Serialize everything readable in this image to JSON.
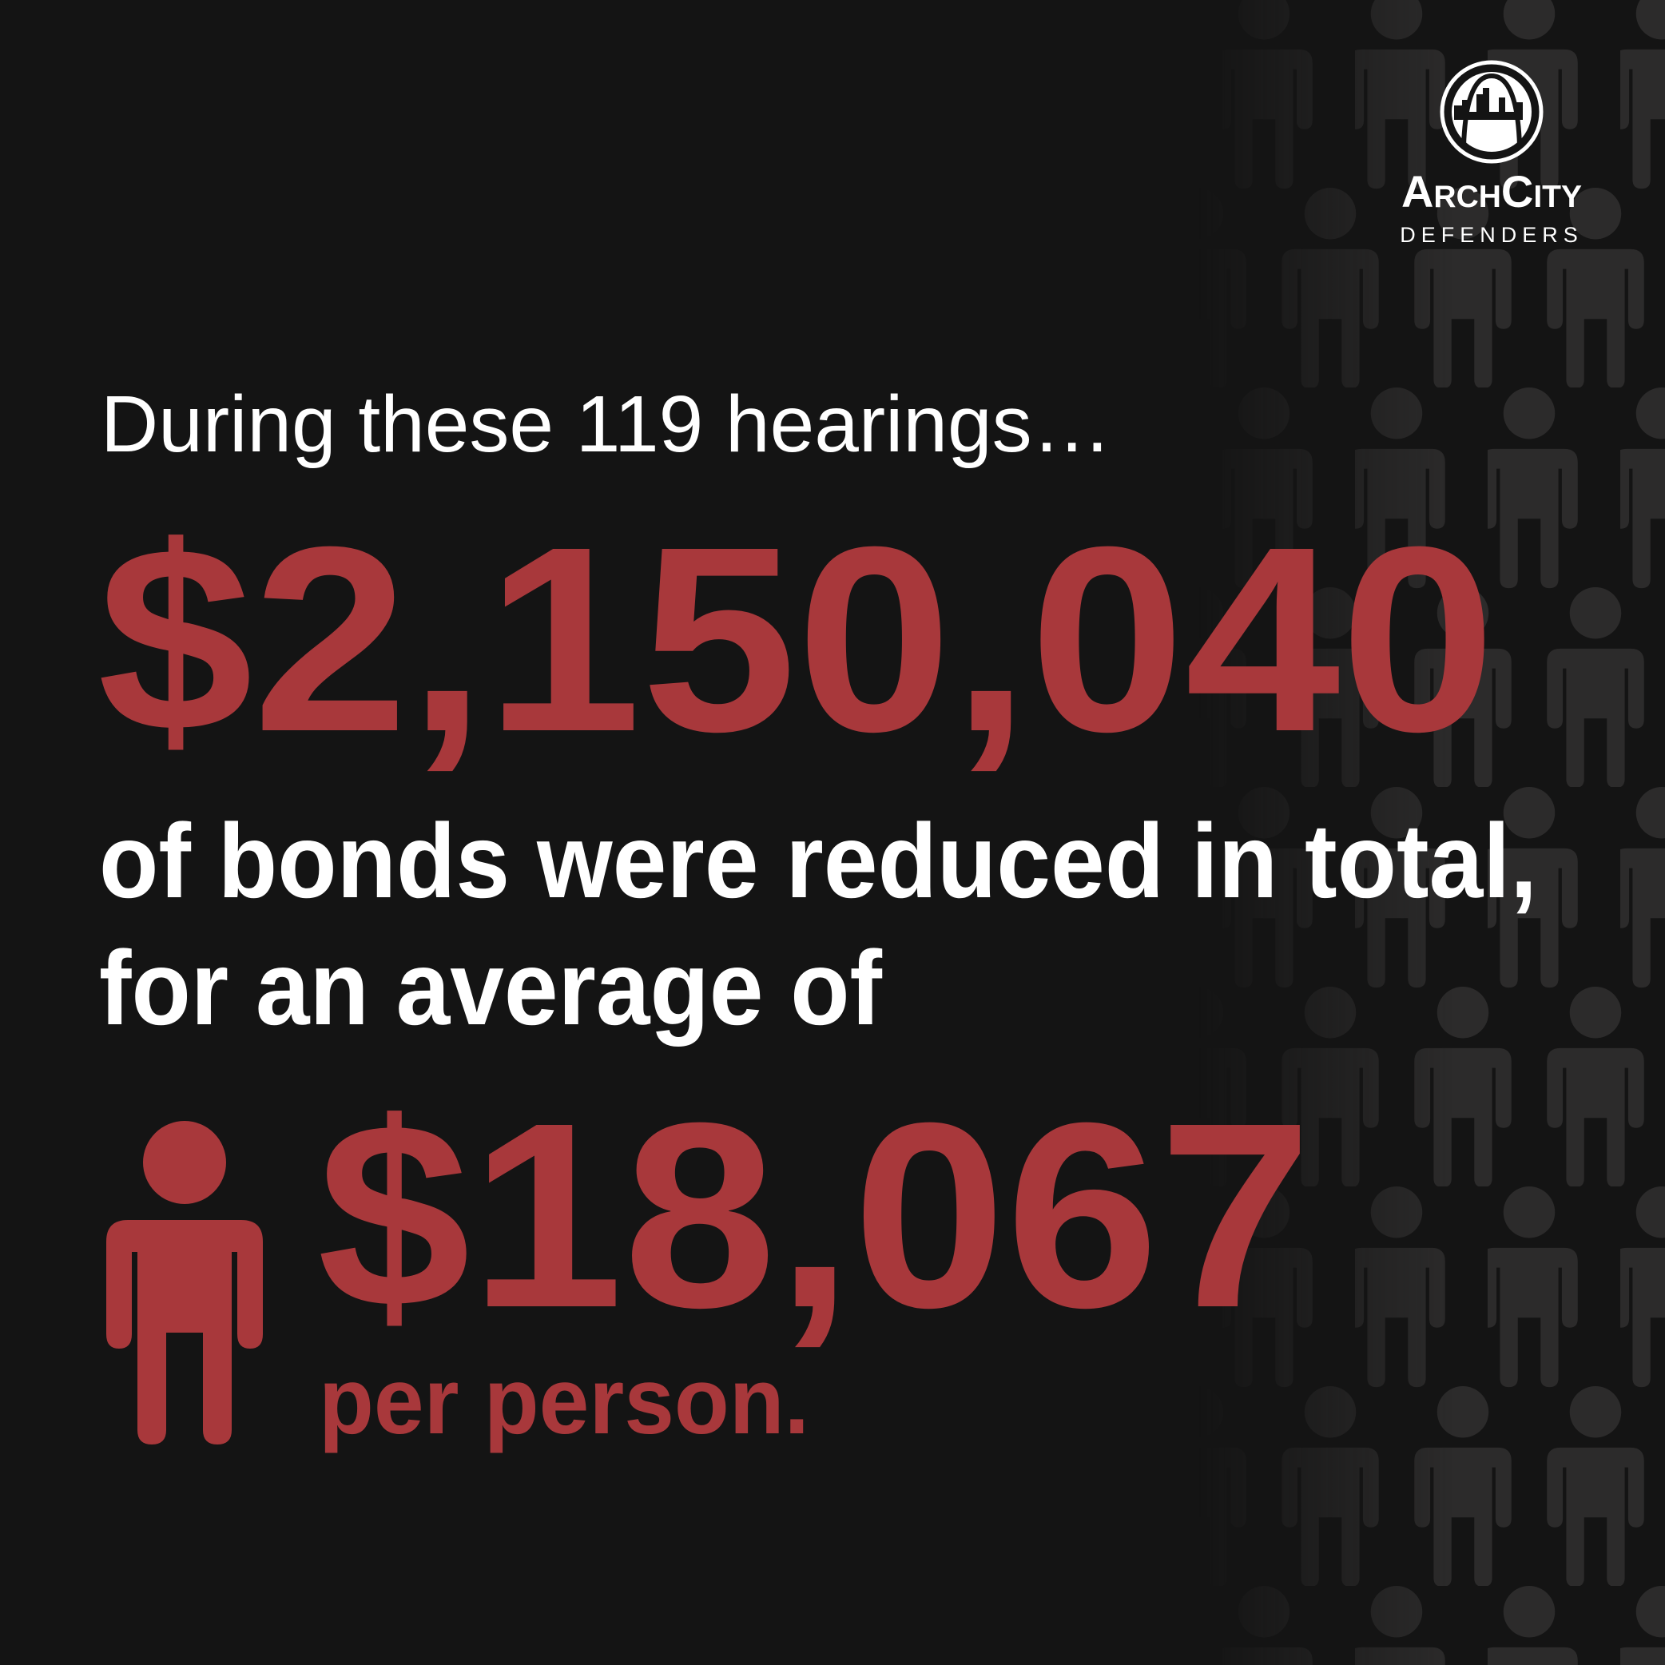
{
  "logo": {
    "name": "ArchCity",
    "subtitle": "DEFENDERS"
  },
  "intro": "During these 119 hearings…",
  "total": "$2,150,040",
  "caption": [
    "of bonds were reduced in total,",
    "for an average of"
  ],
  "average": "$18,067",
  "average_caption": "per person."
}
